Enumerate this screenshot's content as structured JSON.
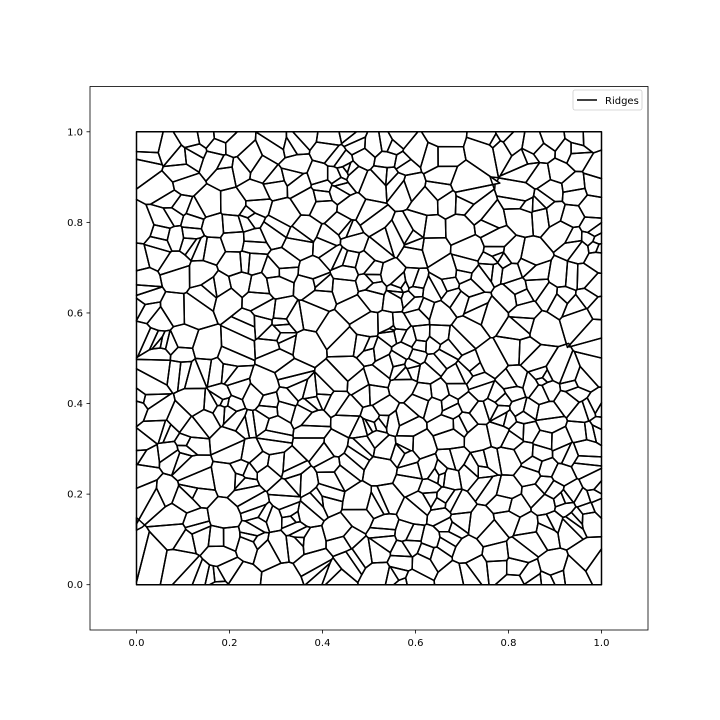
{
  "chart_data": {
    "type": "line",
    "title": "",
    "xlabel": "",
    "ylabel": "",
    "xlim": [
      -0.1,
      1.1
    ],
    "ylim": [
      -0.1,
      1.1
    ],
    "xticks": [
      0.0,
      0.2,
      0.4,
      0.6,
      0.8,
      1.0
    ],
    "yticks": [
      0.0,
      0.2,
      0.4,
      0.6,
      0.8,
      1.0
    ],
    "xtick_labels": [
      "0.0",
      "0.2",
      "0.4",
      "0.6",
      "0.8",
      "1.0"
    ],
    "ytick_labels": [
      "0.0",
      "0.2",
      "0.4",
      "0.6",
      "0.8",
      "1.0"
    ],
    "grid": false,
    "legend": {
      "position": "top-right",
      "entries": [
        "Ridges"
      ]
    },
    "series": [
      {
        "name": "Ridges",
        "color": "#000000",
        "kind": "voronoi-ridges",
        "domain": {
          "x": [
            0.0,
            1.0
          ],
          "y": [
            0.0,
            1.0
          ]
        },
        "approx_cell_count": 700
      }
    ]
  }
}
